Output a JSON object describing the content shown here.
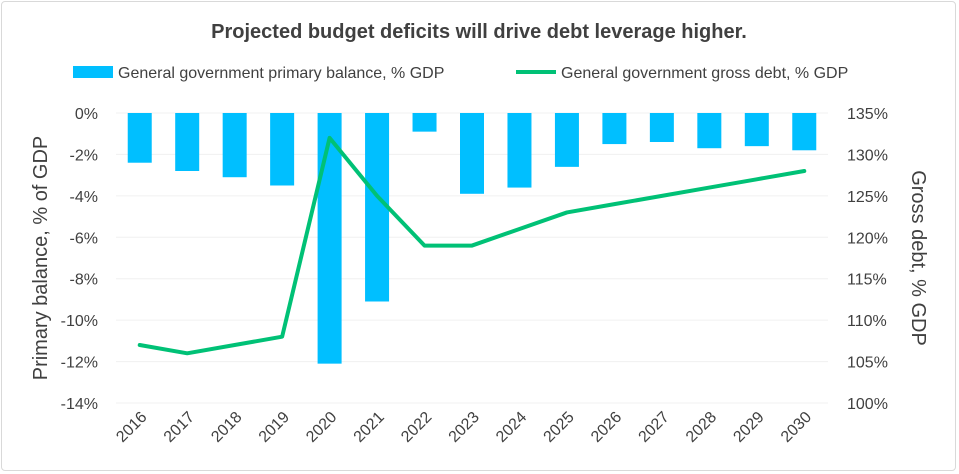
{
  "chart_data": {
    "type": "bar+line",
    "title": "Projected budget deficits will drive debt leverage higher.",
    "categories": [
      "2016",
      "2017",
      "2018",
      "2019",
      "2020",
      "2021",
      "2022",
      "2023",
      "2024",
      "2025",
      "2026",
      "2027",
      "2028",
      "2029",
      "2030"
    ],
    "series": [
      {
        "name": "General government primary balance, % GDP",
        "type": "bar",
        "axis": "left",
        "color": "#00BFFF",
        "values": [
          -2.4,
          -2.8,
          -3.1,
          -3.5,
          -12.1,
          -9.1,
          -0.9,
          -3.9,
          -3.6,
          -2.6,
          -1.5,
          -1.4,
          -1.7,
          -1.6,
          -1.8
        ]
      },
      {
        "name": "General government gross debt, % GDP",
        "type": "line",
        "axis": "right",
        "color": "#00C176",
        "values": [
          107,
          106,
          107,
          108,
          132,
          125,
          119,
          119,
          121,
          123,
          124,
          125,
          126,
          127,
          128
        ]
      }
    ],
    "ylabel": "Primary balance, % of GDP",
    "y2label": "Gross debt, % GDP",
    "ylim": [
      -14,
      0
    ],
    "y2lim": [
      100,
      135
    ],
    "yticks": [
      "0%",
      "-2%",
      "-4%",
      "-6%",
      "-8%",
      "-10%",
      "-12%",
      "-14%"
    ],
    "y2ticks": [
      "135%",
      "130%",
      "125%",
      "120%",
      "115%",
      "110%",
      "105%",
      "100%"
    ],
    "grid": true,
    "legend": "top"
  }
}
